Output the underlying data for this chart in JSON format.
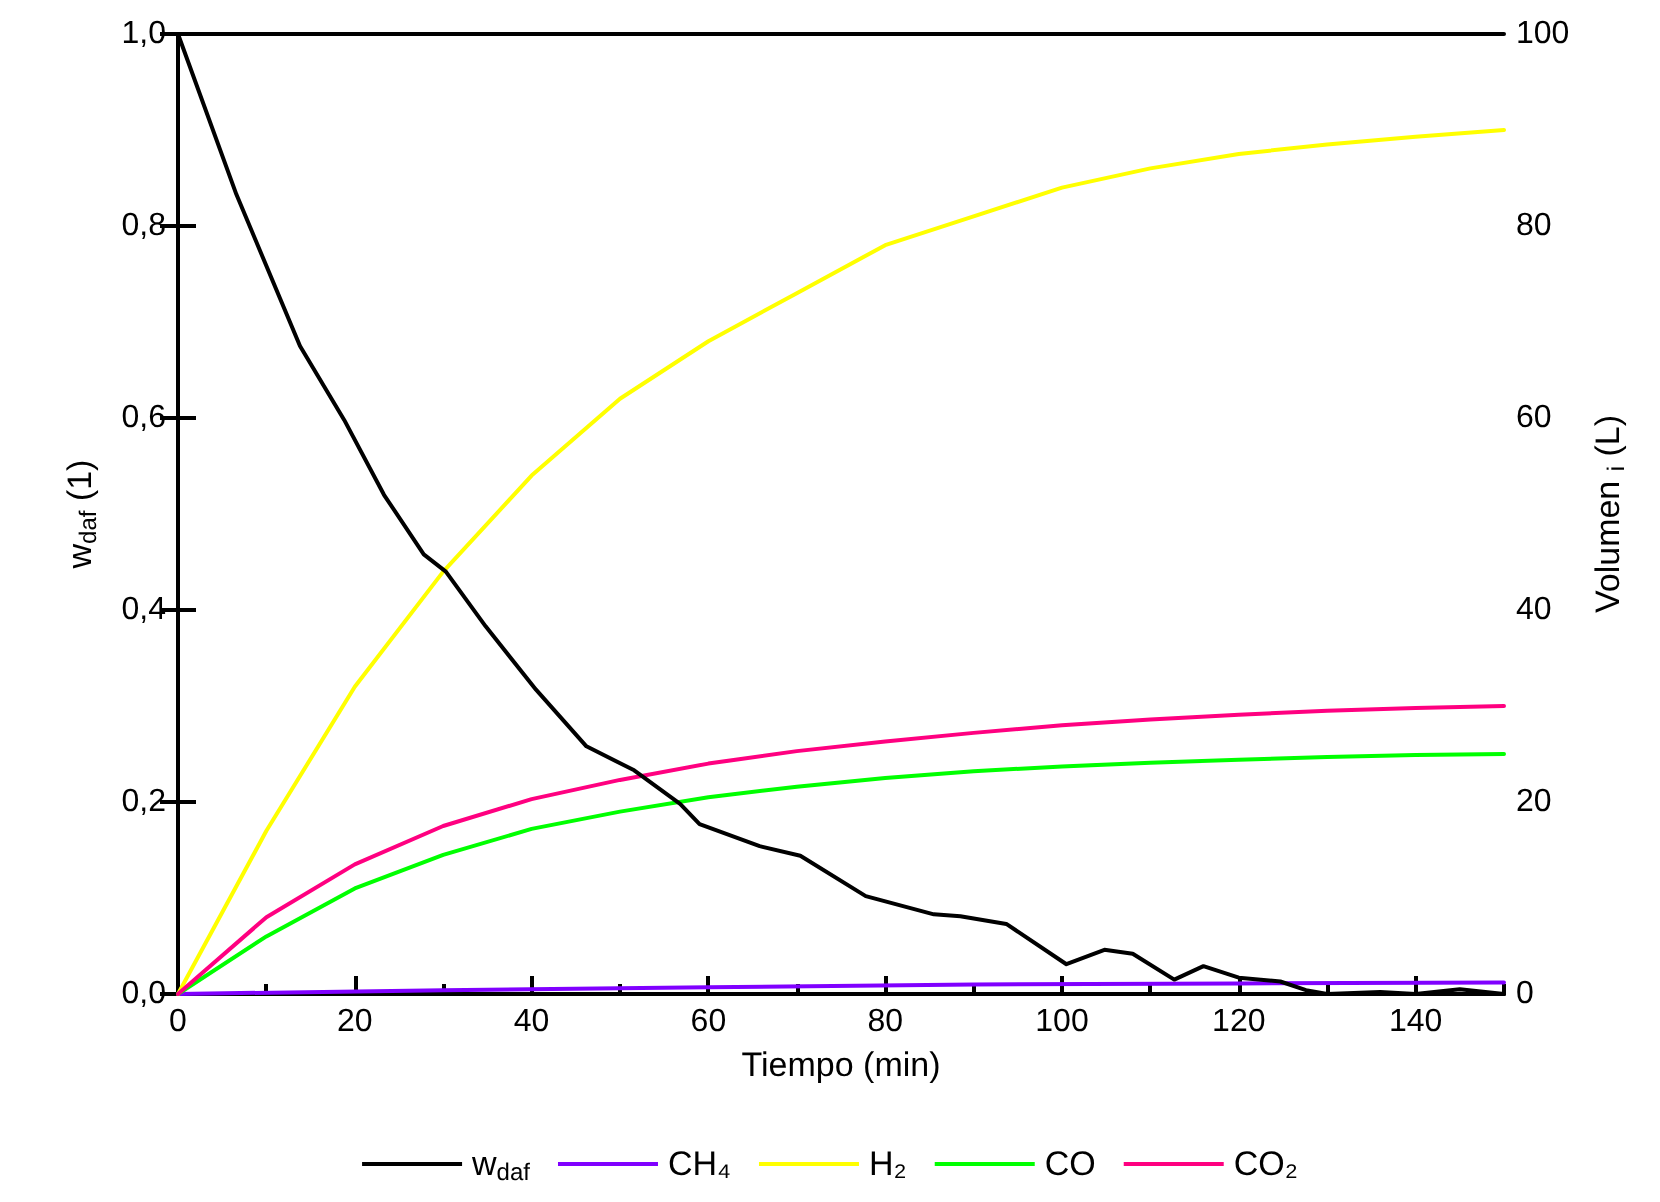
{
  "chart_data": {
    "type": "line",
    "xlabel": "Tiempo (min)",
    "ylabel": "w$_{daf}$ (1)",
    "y2label": "Volumen $_{i}$ (L)",
    "xlim": [
      0,
      150
    ],
    "xticks": [
      0,
      20,
      40,
      60,
      80,
      100,
      120,
      140
    ],
    "ylim": [
      0,
      1
    ],
    "yticks": [
      {
        "value": 0,
        "label": "0,0"
      },
      {
        "value": 0.2,
        "label": "0,2"
      },
      {
        "value": 0.4,
        "label": "0,4"
      },
      {
        "value": 0.6,
        "label": "0,6"
      },
      {
        "value": 0.8,
        "label": "0,8"
      },
      {
        "value": 1,
        "label": "1,0"
      }
    ],
    "y2lim": [
      0,
      100
    ],
    "y2ticks": [
      0,
      20,
      40,
      60,
      80,
      100
    ],
    "grid": false,
    "legend": "bottom",
    "marker": "none",
    "line_style": "solid",
    "series": [
      {
        "name": "w$_{daf}$",
        "color": "#000000",
        "x": [
          0,
          6.6,
          13.8,
          18.8,
          23.3,
          27.8,
          30.3,
          34.8,
          40.5,
          46.2,
          51.6,
          56.8,
          59,
          65.8,
          70.4,
          77.8,
          85.5,
          88.5,
          93.7,
          100.5,
          104.8,
          108,
          112.7,
          116,
          120,
          124.7,
          127.6,
          130,
          136,
          140,
          145,
          150
        ],
        "values": [
          1,
          0.833,
          0.675,
          0.598,
          0.52,
          0.458,
          0.44,
          0.383,
          0.317,
          0.258,
          0.233,
          0.198,
          0.177,
          0.154,
          0.144,
          0.102,
          0.083,
          0.081,
          0.073,
          0.031,
          0.046,
          0.042,
          0.015,
          0.029,
          0.017,
          0.013,
          0.004,
          0,
          0.002,
          0,
          0.005,
          0
        ]
      },
      {
        "name": "CH₄",
        "color": "#8000ff",
        "axis": "y2",
        "x": [
          0,
          30,
          60,
          90,
          120,
          150
        ],
        "values": [
          0,
          0.4,
          0.7,
          1,
          1.1,
          1.2
        ]
      },
      {
        "name": "H₂",
        "color": "#ffff00",
        "axis": "y2",
        "x": [
          0,
          10,
          20,
          30,
          40,
          50,
          60,
          70,
          80,
          90,
          100,
          110,
          120,
          130,
          140,
          150
        ],
        "values": [
          0,
          17,
          32,
          44,
          54,
          62,
          68,
          73,
          78,
          81,
          84,
          86,
          87.5,
          88.5,
          89.3,
          90
        ]
      },
      {
        "name": "CO",
        "color": "#00ff00",
        "axis": "y2",
        "x": [
          0,
          10,
          20,
          30,
          40,
          50,
          60,
          70,
          80,
          90,
          100,
          110,
          120,
          130,
          140,
          150
        ],
        "values": [
          0,
          6,
          11,
          14.5,
          17.2,
          19,
          20.5,
          21.6,
          22.5,
          23.2,
          23.7,
          24.1,
          24.4,
          24.7,
          24.9,
          25
        ]
      },
      {
        "name": "CO₂",
        "color": "#ff0080",
        "axis": "y2",
        "x": [
          0,
          10,
          20,
          30,
          40,
          50,
          60,
          70,
          80,
          90,
          100,
          110,
          120,
          130,
          140,
          150
        ],
        "values": [
          0,
          8,
          13.5,
          17.5,
          20.3,
          22.3,
          24,
          25.3,
          26.3,
          27.2,
          28,
          28.6,
          29.1,
          29.5,
          29.8,
          30
        ]
      }
    ]
  }
}
